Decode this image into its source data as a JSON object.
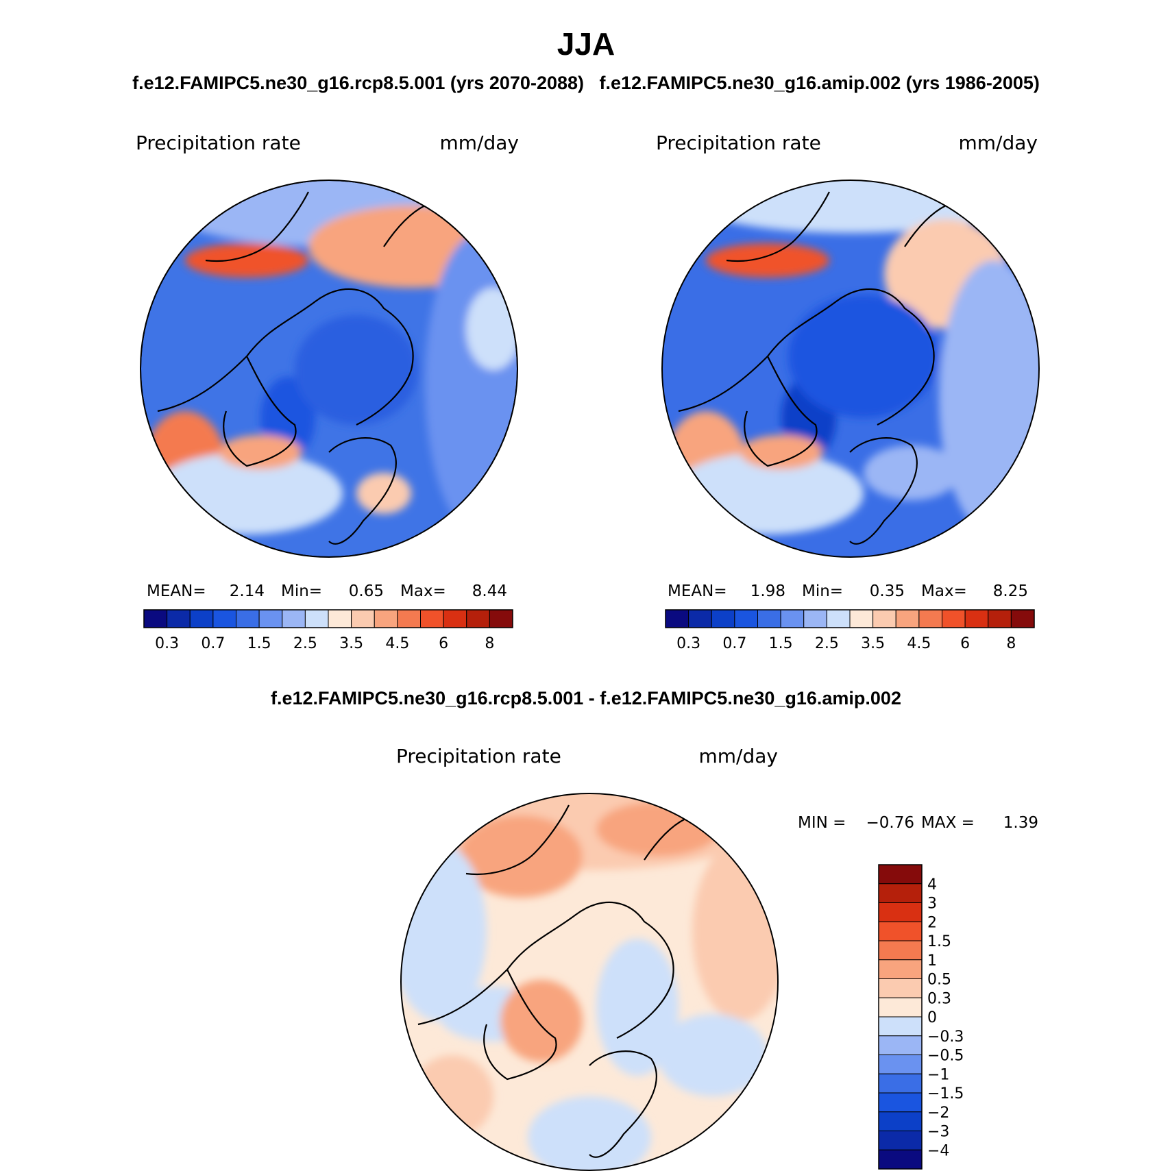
{
  "title": "JJA",
  "subtitle": "f.e12.FAMIPC5.ne30_g16.rcp8.5.001 (yrs 2070-2088)   f.e12.FAMIPC5.ne30_g16.amip.002 (yrs 1986-2005)",
  "panels": [
    {
      "variable": "Precipitation rate",
      "units": "mm/day",
      "stats": {
        "mean_label": "MEAN=",
        "mean": "2.14",
        "min_label": "Min=",
        "min": "0.65",
        "max_label": "Max=",
        "max": "8.44"
      }
    },
    {
      "variable": "Precipitation rate",
      "units": "mm/day",
      "stats": {
        "mean_label": "MEAN=",
        "mean": "1.98",
        "min_label": "Min=",
        "min": "0.35",
        "max_label": "Max=",
        "max": "8.25"
      }
    }
  ],
  "diff_panel": {
    "title": "f.e12.FAMIPC5.ne30_g16.rcp8.5.001 - f.e12.FAMIPC5.ne30_g16.amip.002",
    "variable": "Precipitation rate",
    "units": "mm/day",
    "min_label": "MIN =",
    "min": "−0.76",
    "max_label": "MAX =",
    "max": "1.39"
  },
  "abs_colorbar": {
    "colors": [
      "#0a0a80",
      "#0b2aa8",
      "#0c40c8",
      "#1a55e0",
      "#3a6ee6",
      "#6a92f0",
      "#9bb6f5",
      "#cde0fa",
      "#fde9d8",
      "#fbcbb0",
      "#f8a47e",
      "#f47a50",
      "#f0522a",
      "#d93012",
      "#b5200b",
      "#850b0b"
    ],
    "tick_labels": [
      "0.3",
      "0.7",
      "1.5",
      "2.5",
      "3.5",
      "4.5",
      "6",
      "8"
    ]
  },
  "diff_colorbar": {
    "colors": [
      "#0a0a80",
      "#0b2aa8",
      "#0c40c8",
      "#1a55e0",
      "#3a6ee6",
      "#6a92f0",
      "#9bb6f5",
      "#cde0fa",
      "#fde9d8",
      "#fbcbb0",
      "#f8a47e",
      "#f47a50",
      "#f0522a",
      "#d93012",
      "#b5200b",
      "#850b0b"
    ],
    "tick_labels": [
      "4",
      "3",
      "2",
      "1.5",
      "1",
      "0.5",
      "0.3",
      "0",
      "−0.3",
      "−0.5",
      "−1",
      "−1.5",
      "−2",
      "−3",
      "−4"
    ]
  }
}
